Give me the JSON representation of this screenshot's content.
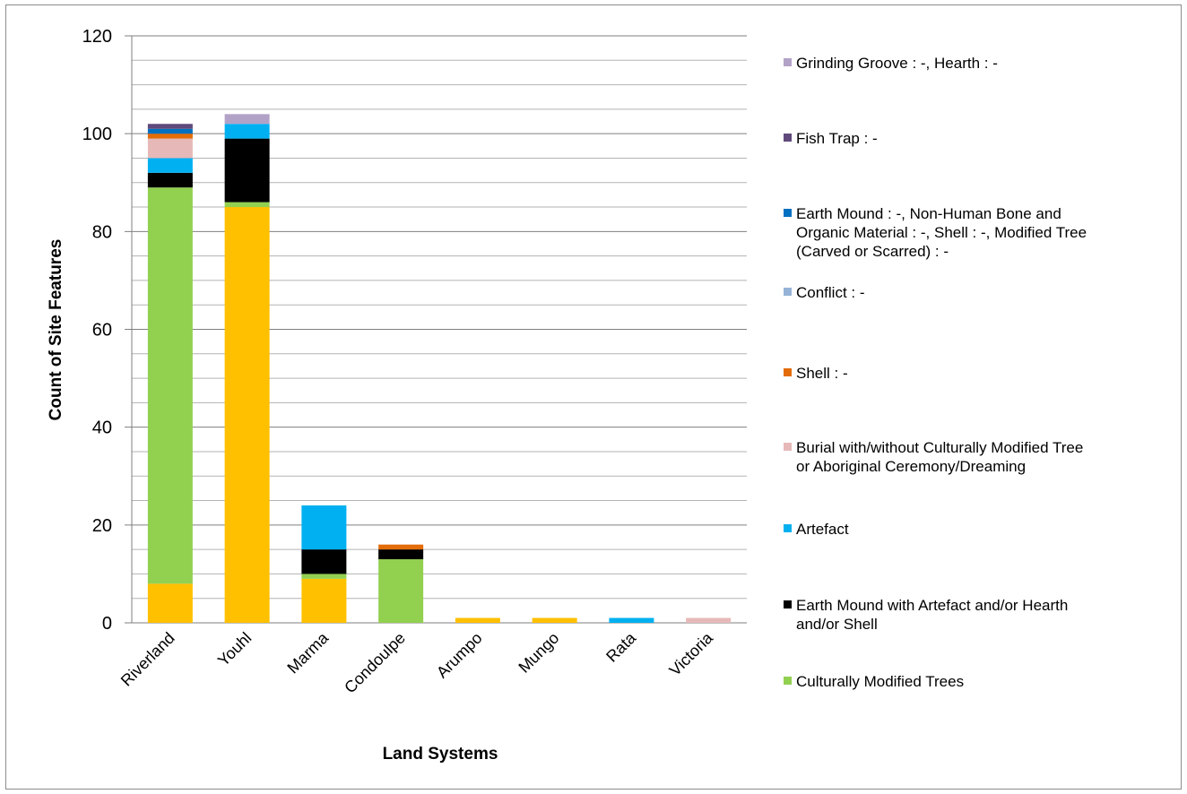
{
  "chart_data": {
    "type": "bar",
    "stacked": true,
    "title": "",
    "xlabel": "Land Systems",
    "ylabel": "Count of Site Features",
    "ylim": [
      0,
      120
    ],
    "yticks": [
      0,
      20,
      40,
      60,
      80,
      100,
      120
    ],
    "minor_gridlines_every": 4,
    "grid": true,
    "legend_position": "right",
    "categories": [
      "Riverland",
      "Youhl",
      "Marma",
      "Condoulpe",
      "Arumpo",
      "Mungo",
      "Rata",
      "Victoria"
    ],
    "series": [
      {
        "color": "#FFC000",
        "values": [
          8,
          85,
          9,
          0,
          1,
          1,
          0,
          0
        ]
      },
      {
        "name": "Culturally Modified Trees",
        "color": "#92D050",
        "values": [
          81,
          1,
          1,
          13,
          0,
          0,
          0,
          0
        ]
      },
      {
        "name": "Earth Mound with Artefact and/or Hearth and/or Shell",
        "color": "#000000",
        "values": [
          3,
          13,
          5,
          2,
          0,
          0,
          0,
          0
        ]
      },
      {
        "name": "Artefact",
        "color": "#00B0F0",
        "values": [
          3,
          3,
          9,
          0,
          0,
          0,
          1,
          0
        ]
      },
      {
        "name": "Burial with/without Culturally Modified Tree or Aboriginal Ceremony/Dreaming",
        "color": "#E6B9B8",
        "values": [
          4,
          0,
          0,
          0,
          0,
          0,
          0,
          1
        ]
      },
      {
        "name": "Shell : -",
        "color": "#E36C09",
        "values": [
          1,
          0,
          0,
          1,
          0,
          0,
          0,
          0
        ]
      },
      {
        "name": "Conflict : -",
        "color": "#95B3D7",
        "values": [
          0,
          0,
          0,
          0,
          0,
          0,
          0,
          0
        ]
      },
      {
        "name": "Earth Mound : -, Non-Human Bone and Organic Material : -, Shell : -, Modified Tree (Carved or Scarred) : -",
        "color": "#0070C0",
        "values": [
          1,
          0,
          0,
          0,
          0,
          0,
          0,
          0
        ]
      },
      {
        "name": "Fish Trap : -",
        "color": "#604A7B",
        "values": [
          1,
          0,
          0,
          0,
          0,
          0,
          0,
          0
        ]
      },
      {
        "name": "Grinding Groove : -, Hearth : -",
        "color": "#B3A2C7",
        "values": [
          0,
          2,
          0,
          0,
          0,
          0,
          0,
          0
        ]
      }
    ],
    "legend": [
      {
        "label": "Grinding Groove : -, Hearth : -",
        "lines": [
          "Grinding Groove : -, Hearth : -"
        ],
        "color": "#B3A2C7"
      },
      {
        "label": "Fish Trap : -",
        "lines": [
          "Fish Trap : -"
        ],
        "color": "#604A7B"
      },
      {
        "label": "Earth Mound : -, Non-Human Bone and Organic Material : -, Shell : -, Modified Tree (Carved or Scarred) : -",
        "lines": [
          "Earth Mound : -, Non-Human Bone and",
          "Organic Material : -, Shell : -, Modified Tree",
          "(Carved or Scarred) : -"
        ],
        "color": "#0070C0"
      },
      {
        "label": "Conflict : -",
        "lines": [
          "Conflict : -"
        ],
        "color": "#95B3D7"
      },
      {
        "label": "Shell : -",
        "lines": [
          "Shell : -"
        ],
        "color": "#E36C09"
      },
      {
        "label": "Burial with/without Culturally Modified Tree or Aboriginal Ceremony/Dreaming",
        "lines": [
          "Burial with/without Culturally Modified Tree",
          "or Aboriginal Ceremony/Dreaming"
        ],
        "color": "#E6B9B8"
      },
      {
        "label": "Artefact",
        "lines": [
          "Artefact"
        ],
        "color": "#00B0F0"
      },
      {
        "label": "Earth Mound with Artefact and/or Hearth and/or Shell",
        "lines": [
          "Earth Mound with Artefact and/or Hearth",
          "and/or Shell"
        ],
        "color": "#000000"
      },
      {
        "label": "Culturally Modified Trees",
        "lines": [
          "Culturally Modified Trees"
        ],
        "color": "#92D050"
      }
    ]
  }
}
